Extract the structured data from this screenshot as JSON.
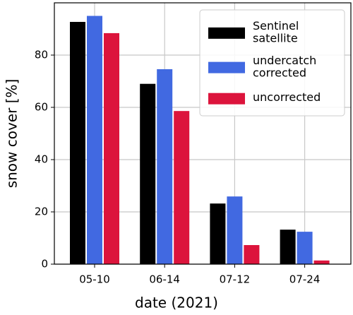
{
  "chart_data": {
    "type": "bar",
    "xlabel": "date (2021)",
    "ylabel": "snow cover [%]",
    "categories": [
      "05-10",
      "06-14",
      "07-12",
      "07-24"
    ],
    "series": [
      {
        "name": "Sentinel\nsatellite",
        "color": "#000000",
        "values": [
          92.7,
          69,
          23.2,
          13.2
        ]
      },
      {
        "name": "undercatch\ncorrected",
        "color": "#4169e1",
        "values": [
          95,
          74.6,
          25.9,
          12.4
        ]
      },
      {
        "name": "uncorrected",
        "color": "#dc143c",
        "values": [
          88.4,
          58.6,
          7.3,
          1.4
        ]
      }
    ],
    "ylim": [
      0,
      100
    ],
    "yticks": [
      0,
      20,
      40,
      60,
      80
    ],
    "grid": true,
    "legend": "upper right"
  }
}
